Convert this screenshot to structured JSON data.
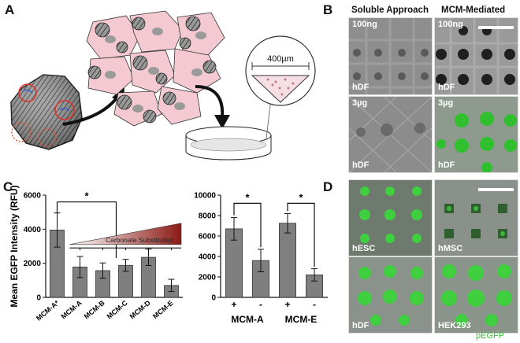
{
  "panels": {
    "A": "A",
    "B": "B",
    "C": "C",
    "D": "D"
  },
  "schematic": {
    "scale_label": "400µm"
  },
  "panel_b": {
    "col_headers": [
      "Soluble Approach",
      "MCM-Mediated"
    ],
    "rows": [
      {
        "dose": "100ng",
        "cell": "hDF"
      },
      {
        "dose": "3µg",
        "cell": "hDF"
      }
    ]
  },
  "panel_d": {
    "tiles": [
      {
        "label": "hESC"
      },
      {
        "label": "hMSC"
      },
      {
        "label": "hDF"
      },
      {
        "label": "HEK293"
      }
    ],
    "footer": "pEGFP",
    "footer_color": "#3bbf3b"
  },
  "chart_data": [
    {
      "type": "bar",
      "ylabel": "Mean EGFP Intensity (RFU)",
      "categories": [
        "MCM-A*",
        "MCM-A",
        "MCM-B",
        "MCM-C",
        "MCM-D",
        "MCM-E"
      ],
      "values": [
        3950,
        1780,
        1570,
        1880,
        2350,
        700
      ],
      "errors": [
        1000,
        620,
        450,
        350,
        480,
        360
      ],
      "ylim": [
        0,
        6000
      ],
      "yticks": [
        0,
        2000,
        4000,
        6000
      ],
      "significance": "*",
      "gradient_label": "Carbonate Substitution",
      "bar_color": "#7f7f7f"
    },
    {
      "type": "bar",
      "categories": [
        "+",
        "-",
        "+",
        "-"
      ],
      "groups": [
        "MCM-A",
        "MCM-E"
      ],
      "values": [
        6700,
        3600,
        7250,
        2200
      ],
      "errors": [
        1100,
        1100,
        950,
        600
      ],
      "ylim": [
        0,
        10000
      ],
      "yticks": [
        0,
        2000,
        4000,
        6000,
        8000,
        10000
      ],
      "significance": [
        "*",
        "*"
      ],
      "bar_color": "#7f7f7f"
    }
  ]
}
